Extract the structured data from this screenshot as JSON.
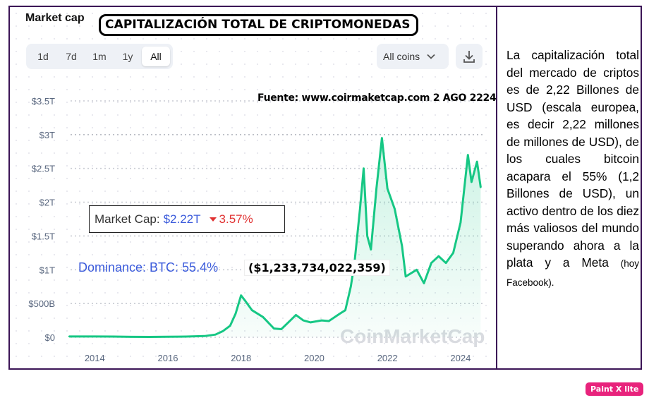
{
  "header": {
    "widget_label": "Market cap",
    "title": "CAPITALIZACIÓN TOTAL DE CRIPTOMONEDAS"
  },
  "range_buttons": [
    {
      "label": "1d",
      "active": false
    },
    {
      "label": "7d",
      "active": false
    },
    {
      "label": "1m",
      "active": false
    },
    {
      "label": "1y",
      "active": false
    },
    {
      "label": "All",
      "active": true
    }
  ],
  "coins_select": {
    "value": "All coins",
    "icon": "chevron-down-icon"
  },
  "download_icon": "download-icon",
  "source": "Fuente: www.coirmaketcap.com 2 AGO 2224",
  "market_cap_box": {
    "label": "Market Cap:",
    "value": "$2.22T",
    "change": "3.57%",
    "change_icon": "triangle-down-icon"
  },
  "dominance": {
    "label": "Dominance: BTC: 55.4%",
    "usd": "($1,233,734,022,359)"
  },
  "watermark": "CoinMarketCap",
  "side_text": {
    "main": "La capitalización total del mercado de criptos es de 2,22 Billones de USD (escala europea, es decir 2,22 millones de millones de USD), de los cuales bitcoin acapara el 55% (1,2 Billones de USD), un activo dentro de los diez más valiosos del mundo superando ahora a la plata y a Meta",
    "note": "(hoy Facebook)."
  },
  "badge": "Paint X lite",
  "colors": {
    "line": "#16c784",
    "accent": "#3b5bdb",
    "negative": "#e03131",
    "border": "#3b1456"
  },
  "chart_data": {
    "type": "area",
    "x": [
      2013.3,
      2014.0,
      2014.5,
      2015.0,
      2015.5,
      2016.0,
      2016.5,
      2017.0,
      2017.3,
      2017.5,
      2017.7,
      2017.85,
      2018.0,
      2018.1,
      2018.3,
      2018.6,
      2018.9,
      2019.1,
      2019.35,
      2019.5,
      2019.7,
      2019.9,
      2020.2,
      2020.4,
      2020.7,
      2020.85,
      2021.0,
      2021.1,
      2021.25,
      2021.35,
      2021.45,
      2021.55,
      2021.7,
      2021.85,
      2022.0,
      2022.2,
      2022.4,
      2022.5,
      2022.8,
      2023.0,
      2023.2,
      2023.4,
      2023.6,
      2023.8,
      2024.0,
      2024.2,
      2024.3,
      2024.45,
      2024.55
    ],
    "values": [
      0.012,
      0.012,
      0.01,
      0.006,
      0.005,
      0.007,
      0.01,
      0.018,
      0.04,
      0.09,
      0.17,
      0.35,
      0.62,
      0.55,
      0.4,
      0.3,
      0.13,
      0.12,
      0.25,
      0.33,
      0.25,
      0.22,
      0.25,
      0.24,
      0.35,
      0.4,
      0.75,
      1.1,
      1.9,
      2.5,
      1.5,
      1.3,
      2.2,
      2.95,
      2.2,
      1.9,
      1.35,
      0.9,
      1.0,
      0.8,
      1.1,
      1.2,
      1.1,
      1.25,
      1.7,
      2.7,
      2.3,
      2.6,
      2.22
    ],
    "xticks": [
      "2014",
      "2016",
      "2018",
      "2020",
      "2022",
      "2024"
    ],
    "yticks": [
      "$0",
      "$500B",
      "$1T",
      "$1.5T",
      "$2T",
      "$2.5T",
      "$3T",
      "$3.5T"
    ],
    "ylim": [
      0,
      3.5
    ],
    "grid": true
  }
}
